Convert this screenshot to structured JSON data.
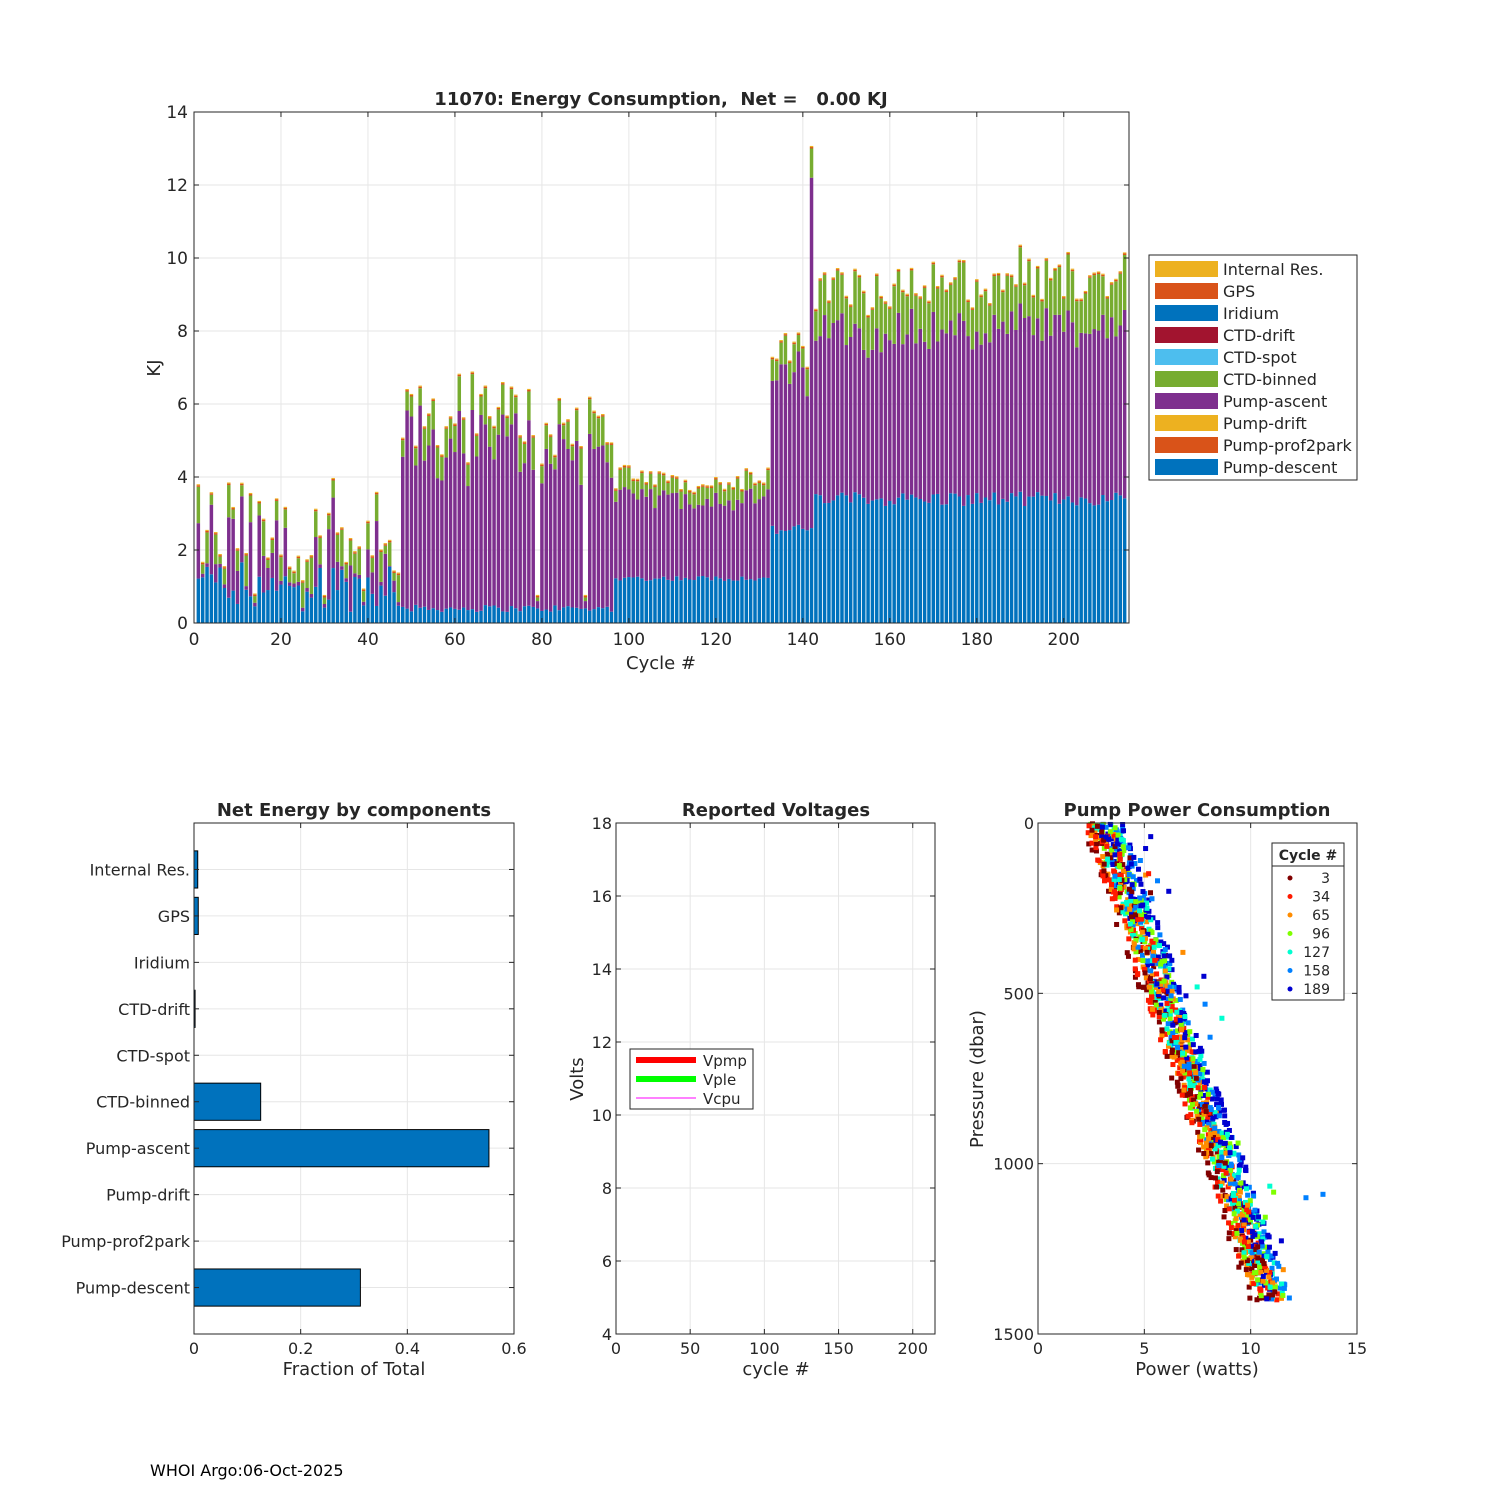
{
  "figure": {
    "footer": "WHOI Argo:06-Oct-2025",
    "colors": {
      "internal_res": "#EDB120",
      "gps": "#D95319",
      "iridium": "#0072BD",
      "ctd_drift": "#A2142F",
      "ctd_spot": "#4DBEEE",
      "ctd_binned": "#77AC30",
      "pump_ascent": "#7E2F8E",
      "pump_drift": "#EDB120",
      "pump_prof2park": "#D95319",
      "pump_descent": "#0072BD"
    }
  },
  "chart_data": [
    {
      "id": "energy",
      "type": "bar",
      "stacked": true,
      "title": "11070: Energy Consumption,  Net =   0.00 KJ",
      "xlabel": "Cycle #",
      "ylabel": "KJ",
      "xlim": [
        0,
        215
      ],
      "ylim": [
        0,
        14
      ],
      "xticks": [
        0,
        20,
        40,
        60,
        80,
        100,
        120,
        140,
        160,
        180,
        200
      ],
      "yticks": [
        0,
        2,
        4,
        6,
        8,
        10,
        12,
        14
      ],
      "grid": true,
      "legend_position": "outside-right",
      "legend": [
        "Internal Res.",
        "GPS",
        "Iridium",
        "CTD-drift",
        "CTD-spot",
        "CTD-binned",
        "Pump-ascent",
        "Pump-drift",
        "Pump-prof2park",
        "Pump-descent"
      ],
      "segments": [
        {
          "name": "Pump-descent",
          "from_cycle": 1,
          "to_cycle": 47,
          "approx_kj": 0.5
        },
        {
          "name": "Pump-descent",
          "from_cycle": 48,
          "to_cycle": 96,
          "approx_kj": 0.4
        },
        {
          "name": "Pump-descent",
          "from_cycle": 97,
          "to_cycle": 132,
          "approx_kj": 1.2
        },
        {
          "name": "Pump-descent",
          "from_cycle": 133,
          "to_cycle": 142,
          "approx_kj": 2.5
        },
        {
          "name": "Pump-descent",
          "from_cycle": 143,
          "to_cycle": 214,
          "approx_kj": 3.4
        },
        {
          "name": "Pump-ascent",
          "from_cycle": 48,
          "to_cycle": 96,
          "approx_kj": 4.8
        },
        {
          "name": "Pump-ascent",
          "from_cycle": 97,
          "to_cycle": 132,
          "approx_kj": 2.2
        },
        {
          "name": "Pump-ascent",
          "from_cycle": 133,
          "to_cycle": 142,
          "approx_kj": 4.0
        },
        {
          "name": "Pump-ascent",
          "from_cycle": 143,
          "to_cycle": 214,
          "approx_kj": 4.6
        },
        {
          "name": "CTD-binned",
          "from_cycle": 1,
          "to_cycle": 214,
          "approx_kj": 0.8
        }
      ],
      "peak": {
        "cycle": 142,
        "total_kj": 13.1
      }
    },
    {
      "id": "components",
      "type": "bar",
      "orientation": "horizontal",
      "title": "Net Energy by components",
      "xlabel": "Fraction of Total",
      "xlim": [
        0,
        0.6
      ],
      "xticks": [
        0,
        0.2,
        0.4,
        0.6
      ],
      "tick_labels": [
        "0",
        "0.2",
        "0.4",
        "0.6"
      ],
      "grid": true,
      "categories": [
        "Internal Res.",
        "GPS",
        "Iridium",
        "CTD-drift",
        "CTD-spot",
        "CTD-binned",
        "Pump-ascent",
        "Pump-drift",
        "Pump-prof2park",
        "Pump-descent"
      ],
      "values": [
        0.007,
        0.008,
        0.0,
        0.002,
        0.0,
        0.125,
        0.553,
        0.0,
        0.0,
        0.312
      ]
    },
    {
      "id": "voltages",
      "type": "line",
      "title": "Reported Voltages",
      "xlabel": "cycle #",
      "ylabel": "Volts",
      "xlim": [
        0,
        215
      ],
      "ylim": [
        4,
        18
      ],
      "xticks": [
        0,
        50,
        100,
        150,
        200
      ],
      "yticks": [
        4,
        6,
        8,
        10,
        12,
        14,
        16,
        18
      ],
      "grid": true,
      "legend_position": "middle-left",
      "series": [
        {
          "name": "Vpmp",
          "color": "#FF0000",
          "values": []
        },
        {
          "name": "Vple",
          "color": "#00FF00",
          "values": []
        },
        {
          "name": "Vcpu",
          "color": "#FF00FF",
          "values": []
        }
      ]
    },
    {
      "id": "pump_power",
      "type": "scatter",
      "title": "Pump Power Consumption",
      "xlabel": "Power (watts)",
      "ylabel": "Pressure (dbar)",
      "xlim": [
        0,
        15
      ],
      "ylim": [
        0,
        1500
      ],
      "y_reversed": true,
      "xticks": [
        0,
        5,
        10,
        15
      ],
      "yticks": [
        0,
        500,
        1000,
        1500
      ],
      "grid": true,
      "legend_title": "Cycle #",
      "legend_position": "top-right",
      "series": [
        {
          "name": "3",
          "color": "#800000"
        },
        {
          "name": "34",
          "color": "#FF1A00"
        },
        {
          "name": "65",
          "color": "#FF8C00"
        },
        {
          "name": "96",
          "color": "#80FF00"
        },
        {
          "name": "127",
          "color": "#00FFD0"
        },
        {
          "name": "158",
          "color": "#0080FF"
        },
        {
          "name": "189",
          "color": "#0000D0"
        }
      ],
      "trend": {
        "power_at_0_dbar": 3.0,
        "power_at_1400_dbar": 11.0
      }
    }
  ]
}
